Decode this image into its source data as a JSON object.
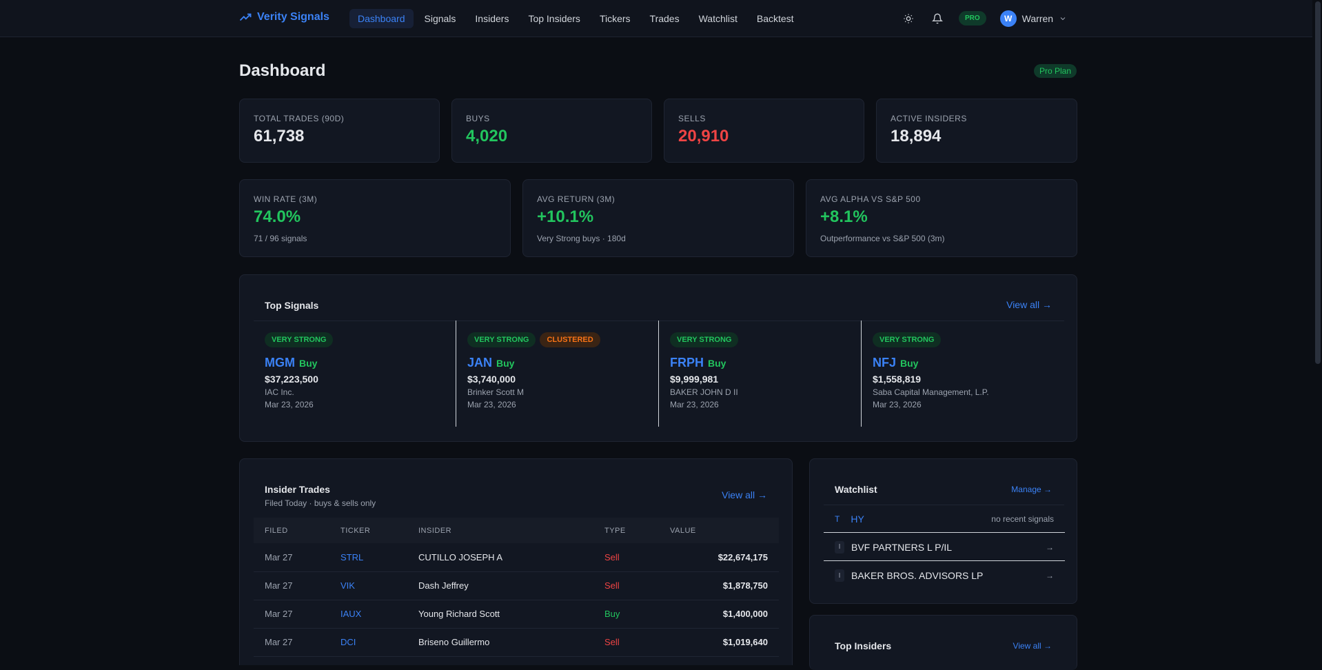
{
  "app": {
    "name": "Verity Signals"
  },
  "nav": [
    {
      "label": "Dashboard",
      "active": true
    },
    {
      "label": "Signals"
    },
    {
      "label": "Insiders"
    },
    {
      "label": "Top Insiders"
    },
    {
      "label": "Tickers"
    },
    {
      "label": "Trades"
    },
    {
      "label": "Watchlist"
    },
    {
      "label": "Backtest"
    }
  ],
  "header": {
    "pro_badge": "PRO",
    "user_initial": "W",
    "user_name": "Warren"
  },
  "page": {
    "title": "Dashboard",
    "plan": "Pro Plan"
  },
  "stats": [
    {
      "label": "TOTAL TRADES (90D)",
      "value": "61,738",
      "color": "white"
    },
    {
      "label": "BUYS",
      "value": "4,020",
      "color": "green"
    },
    {
      "label": "SELLS",
      "value": "20,910",
      "color": "red"
    },
    {
      "label": "ACTIVE INSIDERS",
      "value": "18,894",
      "color": "white"
    }
  ],
  "perf": [
    {
      "label": "WIN RATE (3M)",
      "value": "74.0%",
      "sub": "71 / 96 signals"
    },
    {
      "label": "AVG RETURN (3M)",
      "value": "+10.1%",
      "sub": "Very Strong buys · 180d"
    },
    {
      "label": "AVG ALPHA VS S&P 500",
      "value": "+8.1%",
      "sub": "Outperformance vs S&P 500 (3m)"
    }
  ],
  "top_signals": {
    "title": "Top Signals",
    "view_all": "View all →",
    "items": [
      {
        "badges": [
          "VERY STRONG"
        ],
        "ticker": "MGM",
        "type": "Buy",
        "value": "$37,223,500",
        "who": "IAC Inc.",
        "date": "Mar 23, 2026"
      },
      {
        "badges": [
          "VERY STRONG",
          "CLUSTERED"
        ],
        "ticker": "JAN",
        "type": "Buy",
        "value": "$3,740,000",
        "who": "Brinker Scott M",
        "date": "Mar 23, 2026"
      },
      {
        "badges": [
          "VERY STRONG"
        ],
        "ticker": "FRPH",
        "type": "Buy",
        "value": "$9,999,981",
        "who": "BAKER JOHN D II",
        "date": "Mar 23, 2026"
      },
      {
        "badges": [
          "VERY STRONG"
        ],
        "ticker": "NFJ",
        "type": "Buy",
        "value": "$1,558,819",
        "who": "Saba Capital Management, L.P.",
        "date": "Mar 23, 2026"
      }
    ]
  },
  "insider_trades": {
    "title": "Insider Trades",
    "subtitle": "Filed Today · buys & sells only",
    "view_all": "View all →",
    "columns": [
      "FILED",
      "TICKER",
      "INSIDER",
      "TYPE",
      "VALUE"
    ],
    "rows": [
      {
        "filed": "Mar 27",
        "ticker": "STRL",
        "insider": "CUTILLO JOSEPH A",
        "type": "Sell",
        "value": "$22,674,175"
      },
      {
        "filed": "Mar 27",
        "ticker": "VIK",
        "insider": "Dash Jeffrey",
        "type": "Sell",
        "value": "$1,878,750"
      },
      {
        "filed": "Mar 27",
        "ticker": "IAUX",
        "insider": "Young Richard Scott",
        "type": "Buy",
        "value": "$1,400,000"
      },
      {
        "filed": "Mar 27",
        "ticker": "DCI",
        "insider": "Briseno Guillermo",
        "type": "Sell",
        "value": "$1,019,640"
      }
    ]
  },
  "watchlist": {
    "title": "Watchlist",
    "manage": "Manage →",
    "items": [
      {
        "icon": "T",
        "name": "HY",
        "note": "no recent signals"
      },
      {
        "icon": "I",
        "name": "BVF PARTNERS L P/IL",
        "note": "→"
      },
      {
        "icon": "I",
        "name": "BAKER BROS. ADVISORS LP",
        "note": "→"
      }
    ]
  },
  "top_insiders": {
    "title": "Top Insiders",
    "view_all": "View all →"
  },
  "colors": {
    "accent": "#3b82f6",
    "green": "#22c55e",
    "red": "#ef4444",
    "orange": "#f97316",
    "bg": "#0b0e14"
  }
}
